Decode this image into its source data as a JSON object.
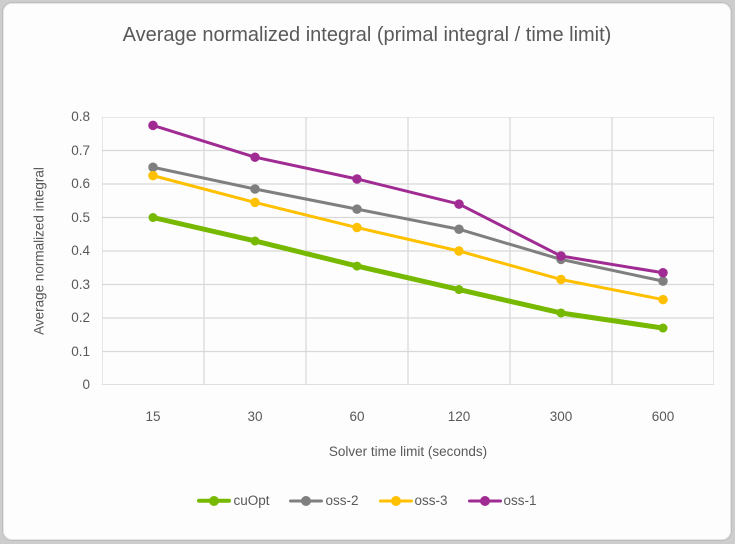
{
  "page": {
    "background_color": "#cdcdcd",
    "card_background": "#fdfdfd",
    "card_border_color": "#bdbdbd"
  },
  "chart_data": {
    "type": "line",
    "title": "Average normalized integral (primal integral / time limit)",
    "xlabel": "Solver time limit (seconds)",
    "ylabel": "Average normalized integral",
    "categories": [
      "15",
      "30",
      "60",
      "120",
      "300",
      "600"
    ],
    "ylim": [
      0,
      0.8
    ],
    "ytick_step": 0.1,
    "grid": true,
    "gridline_color": "#d9d9d9",
    "axis_line_color": "#d0d0d0",
    "text_color": "#595959",
    "legend_position": "bottom",
    "series": [
      {
        "name": "cuOpt",
        "color": "#76b900",
        "line_width": 5,
        "marker_radius": 4.5,
        "values": [
          0.5,
          0.43,
          0.355,
          0.285,
          0.215,
          0.17
        ]
      },
      {
        "name": "oss-2",
        "color": "#7f7f7f",
        "line_width": 3,
        "marker_radius": 4.75,
        "values": [
          0.65,
          0.585,
          0.525,
          0.465,
          0.375,
          0.31
        ]
      },
      {
        "name": "oss-3",
        "color": "#ffc000",
        "line_width": 3,
        "marker_radius": 4.75,
        "values": [
          0.625,
          0.545,
          0.47,
          0.4,
          0.315,
          0.255
        ]
      },
      {
        "name": "oss-1",
        "color": "#a02b93",
        "line_width": 3,
        "marker_radius": 4.75,
        "values": [
          0.775,
          0.68,
          0.615,
          0.54,
          0.385,
          0.335
        ]
      }
    ]
  }
}
